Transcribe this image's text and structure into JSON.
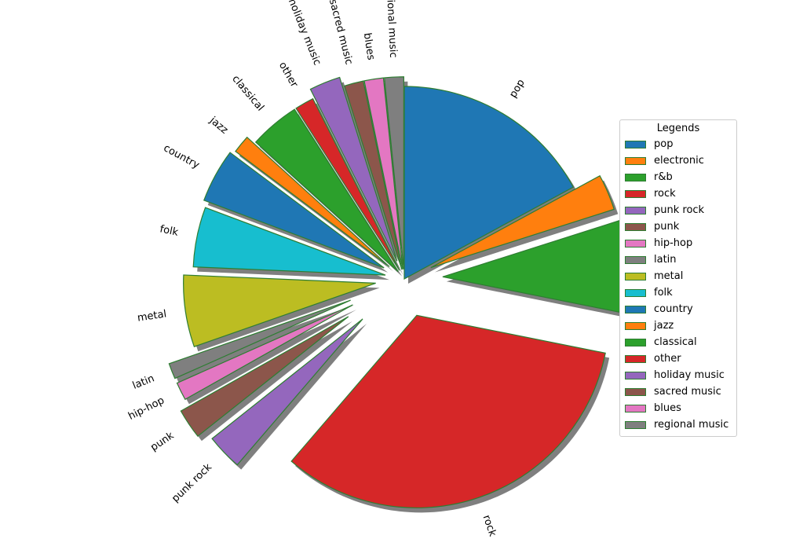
{
  "chart_data": {
    "type": "pie",
    "title": "",
    "labels": [
      "pop",
      "electronic",
      "r&b",
      "rock",
      "punk rock",
      "punk",
      "hip-hop",
      "latin",
      "metal",
      "folk",
      "country",
      "jazz",
      "classical",
      "other",
      "holiday music",
      "sacred music",
      "blues",
      "regional music"
    ],
    "values": [
      17.0,
      3.0,
      8.0,
      33.0,
      3.0,
      2.5,
      1.5,
      1.3,
      6.0,
      5.0,
      4.5,
      1.5,
      4.2,
      1.6,
      2.6,
      1.6,
      1.6,
      1.6
    ],
    "explode": [
      0.0,
      0.15,
      0.2,
      0.2,
      0.3,
      0.35,
      0.3,
      0.3,
      0.15,
      0.1,
      0.12,
      0.1,
      0.05,
      0.05,
      0.1,
      0.05,
      0.05,
      0.05
    ],
    "colors": [
      "#1f77b4",
      "#ff7f0e",
      "#2ca02c",
      "#d62728",
      "#9467bd",
      "#8c564b",
      "#e377c2",
      "#7f7f7f",
      "#bcbd22",
      "#17becf",
      "#1f77b4",
      "#ff7f0e",
      "#2ca02c",
      "#d62728",
      "#9467bd",
      "#8c564b",
      "#e377c2",
      "#7f7f7f"
    ],
    "edge_color": "#2e7d32",
    "shadow": true,
    "start_angle_deg": 90,
    "direction": "clockwise",
    "legend": {
      "title": "Legends",
      "placement": "center-right",
      "entries": [
        "pop",
        "electronic",
        "r&b",
        "rock",
        "punk rock",
        "punk",
        "hip-hop",
        "latin",
        "metal",
        "folk",
        "country",
        "jazz",
        "classical",
        "other",
        "holiday music",
        "sacred music",
        "blues",
        "regional music"
      ]
    }
  }
}
